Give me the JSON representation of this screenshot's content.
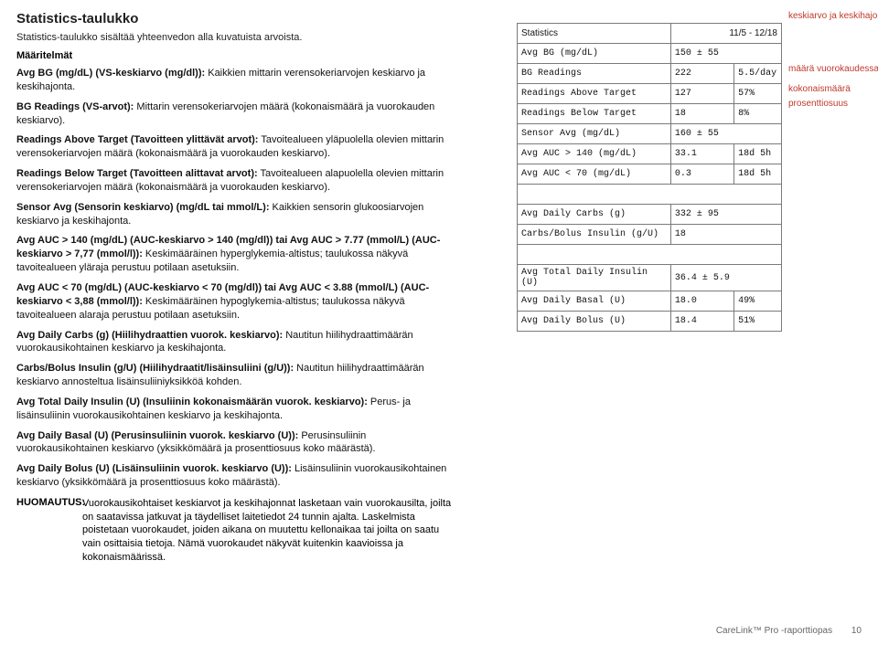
{
  "title": "Statistics-taulukko",
  "intro": "Statistics-taulukko sisältää yhteenvedon alla kuvatuista arvoista.",
  "maaritelmat": "Määritelmät",
  "defs": [
    {
      "b": "Avg BG (mg/dL) (VS-keskiarvo (mg/dl)):",
      "t": " Kaikkien mittarin verensokeriarvojen keskiarvo ja keskihajonta."
    },
    {
      "b": "BG Readings (VS-arvot):",
      "t": " Mittarin verensokeriarvojen määrä (kokonaismäärä ja vuorokauden keskiarvo)."
    },
    {
      "b": "Readings Above Target (Tavoitteen ylittävät arvot):",
      "t": " Tavoitealueen yläpuolella olevien mittarin verensokeriarvojen määrä (kokonaismäärä ja vuorokauden keskiarvo)."
    },
    {
      "b": "Readings Below Target (Tavoitteen alittavat arvot):",
      "t": " Tavoitealueen alapuolella olevien mittarin verensokeriarvojen määrä (kokonaismäärä ja vuorokauden keskiarvo)."
    },
    {
      "b": "Sensor Avg (Sensorin keskiarvo) (mg/dL tai mmol/L):",
      "t": " Kaikkien sensorin glukoosiarvojen keskiarvo ja keskihajonta."
    },
    {
      "b": "Avg AUC > 140 (mg/dL) (AUC-keskiarvo > 140 (mg/dl)) tai Avg AUC > 7.77 (mmol/L) (AUC-keskiarvo > 7,77 (mmol/l)):",
      "t": " Keskimääräinen hyperglykemia-altistus; taulukossa näkyvä tavoitealueen yläraja perustuu potilaan asetuksiin."
    },
    {
      "b": "Avg AUC < 70 (mg/dL) (AUC-keskiarvo < 70 (mg/dl)) tai Avg AUC < 3.88 (mmol/L) (AUC-keskiarvo < 3,88 (mmol/l)):",
      "t": " Keskimääräinen hypoglykemia-altistus; taulukossa näkyvä tavoitealueen alaraja perustuu potilaan asetuksiin."
    },
    {
      "b": "Avg Daily Carbs (g) (Hiilihydraattien vuorok. keskiarvo):",
      "t": " Nautitun hiilihydraattimäärän vuorokausikohtainen keskiarvo ja keskihajonta."
    },
    {
      "b": "Carbs/Bolus Insulin (g/U) (Hiilihydraatit/lisäinsuliini (g/U)):",
      "t": " Nautitun hiilihydraattimäärän keskiarvo annosteltua lisäinsuliiniyksikköä kohden."
    },
    {
      "b": "Avg Total Daily Insulin (U) (Insuliinin kokonaismäärän vuorok. keskiarvo):",
      "t": " Perus- ja lisäinsuliinin vuorokausikohtainen keskiarvo ja keskihajonta."
    },
    {
      "b": "Avg Daily Basal (U) (Perusinsuliinin vuorok. keskiarvo (U)):",
      "t": " Perusinsuliinin vuorokausikohtainen keskiarvo (yksikkömäärä ja prosenttiosuus koko määrästä)."
    },
    {
      "b": "Avg Daily Bolus (U) (Lisäinsuliinin vuorok. keskiarvo (U)):",
      "t": " Lisäinsuliinin vuorokausikohtainen keskiarvo (yksikkömäärä ja prosenttiosuus koko määrästä)."
    }
  ],
  "huom_label": "HUOMAUTUS:",
  "huom_body": "Vuorokausikohtaiset keskiarvot ja keskihajonnat lasketaan vain vuorokausilta, joilta on saatavissa jatkuvat ja täydelliset laitetiedot 24 tunnin ajalta. Laskelmista poistetaan vuorokaudet, joiden aikana on muutettu kellonaikaa tai joilta on saatu vain osittaisia tietoja. Nämä vuorokaudet näkyvät kuitenkin kaavioissa ja kokonaismäärissä.",
  "table": {
    "header": {
      "c1": "Statistics",
      "c2": "11/5 - 12/18"
    },
    "rows": [
      {
        "c1": "Avg BG (mg/dL)",
        "c2": "150 ± 55",
        "merge": true
      },
      {
        "c1": "BG Readings",
        "c2": "222",
        "c3": "5.5/day"
      },
      {
        "c1": "Readings Above Target",
        "c2": "127",
        "c3": "57%"
      },
      {
        "c1": "Readings Below Target",
        "c2": "18",
        "c3": "8%"
      },
      {
        "c1": "Sensor Avg (mg/dL)",
        "c2": "160 ± 55",
        "merge": true
      },
      {
        "c1": "Avg AUC > 140 (mg/dL)",
        "c2": "33.1",
        "c3": "18d 5h"
      },
      {
        "c1": "Avg AUC < 70 (mg/dL)",
        "c2": "0.3",
        "c3": "18d 5h"
      },
      {
        "gap": true
      },
      {
        "c1": "Avg Daily Carbs (g)",
        "c2": "332 ± 95",
        "merge": true
      },
      {
        "c1": "Carbs/Bolus Insulin (g/U)",
        "c2": "18",
        "merge": true
      },
      {
        "gap": true
      },
      {
        "c1": "Avg Total Daily Insulin (U)",
        "c2": "36.4 ± 5.9",
        "merge": true
      },
      {
        "c1": "Avg Daily Basal (U)",
        "c2": "18.0",
        "c3": "49%"
      },
      {
        "c1": "Avg Daily Bolus (U)",
        "c2": "18.4",
        "c3": "51%"
      }
    ]
  },
  "annotations": {
    "a1": "keskiarvo ja keskihajonta",
    "a2": "määrä vuorokaudessa",
    "a3": "kokonaismäärä",
    "a4": "prosenttiosuus"
  },
  "footer": {
    "text": "CareLink™ Pro -raporttiopas",
    "page": "10"
  }
}
